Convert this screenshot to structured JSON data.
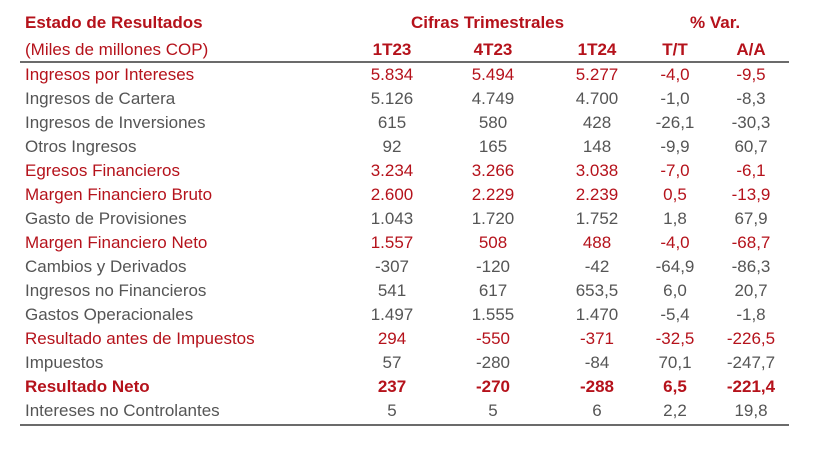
{
  "header": {
    "title": "Estado de Resultados",
    "units": "(Miles de millones COP)",
    "group_quarterly": "Cifras Trimestrales",
    "group_variation": "% Var.",
    "columns": [
      "1T23",
      "4T23",
      "1T24",
      "T/T",
      "A/A"
    ]
  },
  "colors": {
    "accent": "#b5121b",
    "text": "#555555",
    "rule": "#6b6b6b"
  },
  "rows": [
    {
      "label": "Ingresos por Intereses",
      "values": [
        "5.834",
        "5.494",
        "5.277",
        "-4,0",
        "-9,5"
      ],
      "style": "red"
    },
    {
      "label": "Ingresos de Cartera",
      "values": [
        "5.126",
        "4.749",
        "4.700",
        "-1,0",
        "-8,3"
      ],
      "style": "normal"
    },
    {
      "label": "Ingresos de Inversiones",
      "values": [
        "615",
        "580",
        "428",
        "-26,1",
        "-30,3"
      ],
      "style": "normal"
    },
    {
      "label": "Otros Ingresos",
      "values": [
        "92",
        "165",
        "148",
        "-9,9",
        "60,7"
      ],
      "style": "normal"
    },
    {
      "label": "Egresos Financieros",
      "values": [
        "3.234",
        "3.266",
        "3.038",
        "-7,0",
        "-6,1"
      ],
      "style": "red"
    },
    {
      "label": "Margen Financiero Bruto",
      "values": [
        "2.600",
        "2.229",
        "2.239",
        "0,5",
        "-13,9"
      ],
      "style": "red"
    },
    {
      "label": "Gasto de Provisiones",
      "values": [
        "1.043",
        "1.720",
        "1.752",
        "1,8",
        "67,9"
      ],
      "style": "normal"
    },
    {
      "label": "Margen Financiero Neto",
      "values": [
        "1.557",
        "508",
        "488",
        "-4,0",
        "-68,7"
      ],
      "style": "red"
    },
    {
      "label": "Cambios y Derivados",
      "values": [
        "-307",
        "-120",
        "-42",
        "-64,9",
        "-86,3"
      ],
      "style": "normal"
    },
    {
      "label": "Ingresos no Financieros",
      "values": [
        "541",
        "617",
        "653,5",
        "6,0",
        "20,7"
      ],
      "style": "normal"
    },
    {
      "label": "Gastos Operacionales",
      "values": [
        "1.497",
        "1.555",
        "1.470",
        "-5,4",
        "-1,8"
      ],
      "style": "normal"
    },
    {
      "label": "Resultado antes de Impuestos",
      "values": [
        "294",
        "-550",
        "-371",
        "-32,5",
        "-226,5"
      ],
      "style": "red"
    },
    {
      "label": "Impuestos",
      "values": [
        "57",
        "-280",
        "-84",
        "70,1",
        "-247,7"
      ],
      "style": "normal"
    },
    {
      "label": "Resultado Neto",
      "values": [
        "237",
        "-270",
        "-288",
        "6,5",
        "-221,4"
      ],
      "style": "red-bold"
    },
    {
      "label": "Intereses no Controlantes",
      "values": [
        "5",
        "5",
        "6",
        "2,2",
        "19,8"
      ],
      "style": "normal"
    }
  ]
}
